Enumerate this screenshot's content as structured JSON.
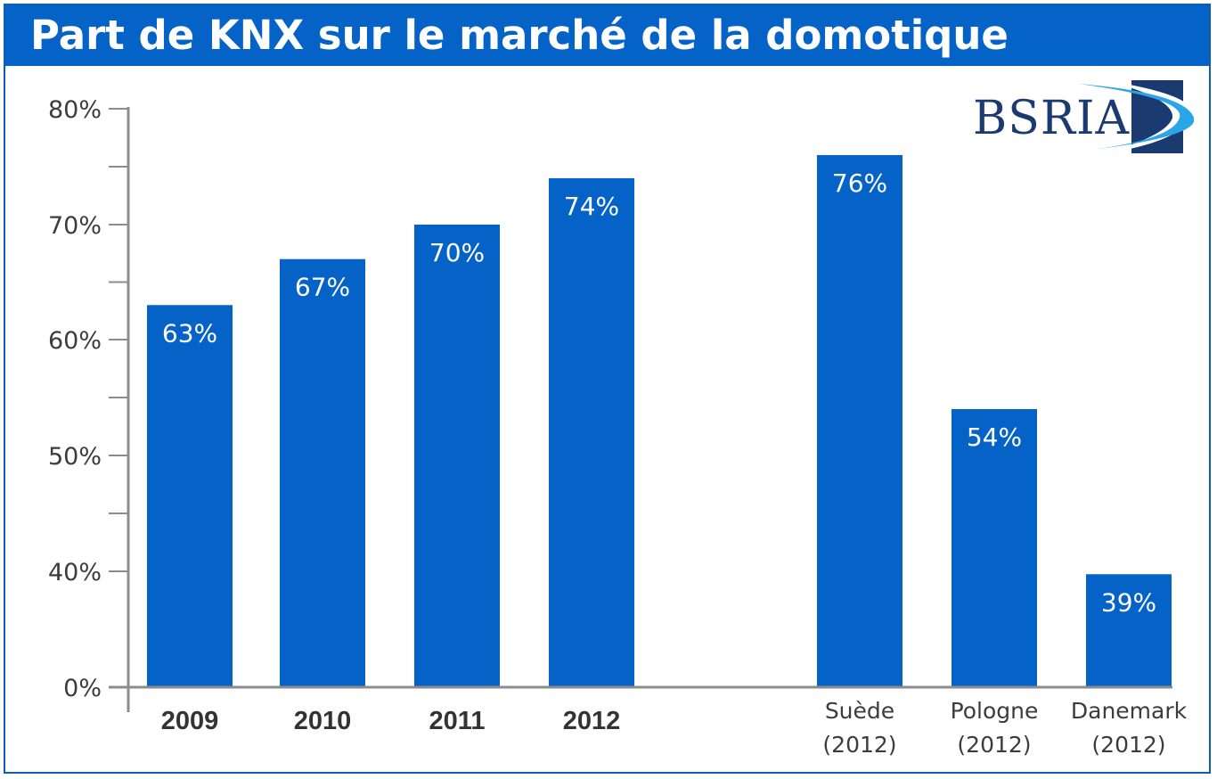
{
  "title": "Part de KNX sur le marché de la domotique",
  "logo": {
    "text": "BSRIA"
  },
  "colors": {
    "bar": "#0563c8",
    "title_bg": "#0563c8",
    "axis": "#8c8c8c",
    "logo_text": "#1b3a70"
  },
  "chart_data": {
    "type": "bar",
    "title": "Part de KNX sur le marché de la domotique",
    "xlabel": "",
    "ylabel": "",
    "ylim": [
      0,
      80
    ],
    "axis_break": "non-linear lower segment: 0% to 40% shown compressed",
    "y_ticks": [
      "0%",
      "40%",
      "50%",
      "60%",
      "70%",
      "80%"
    ],
    "categories": [
      "2009",
      "2010",
      "2011",
      "2012",
      "Suède (2012)",
      "Pologne (2012)",
      "Danemark (2012)"
    ],
    "category_lines": [
      [
        "2009"
      ],
      [
        "2010"
      ],
      [
        "2011"
      ],
      [
        "2012"
      ],
      [
        "Suède",
        "(2012)"
      ],
      [
        "Pologne",
        "(2012)"
      ],
      [
        "Danemark",
        "(2012)"
      ]
    ],
    "values": [
      63,
      67,
      70,
      74,
      76,
      54,
      39
    ],
    "value_labels": [
      "63%",
      "67%",
      "70%",
      "74%",
      "76%",
      "54%",
      "39%"
    ],
    "grid": false,
    "legend": "none"
  }
}
